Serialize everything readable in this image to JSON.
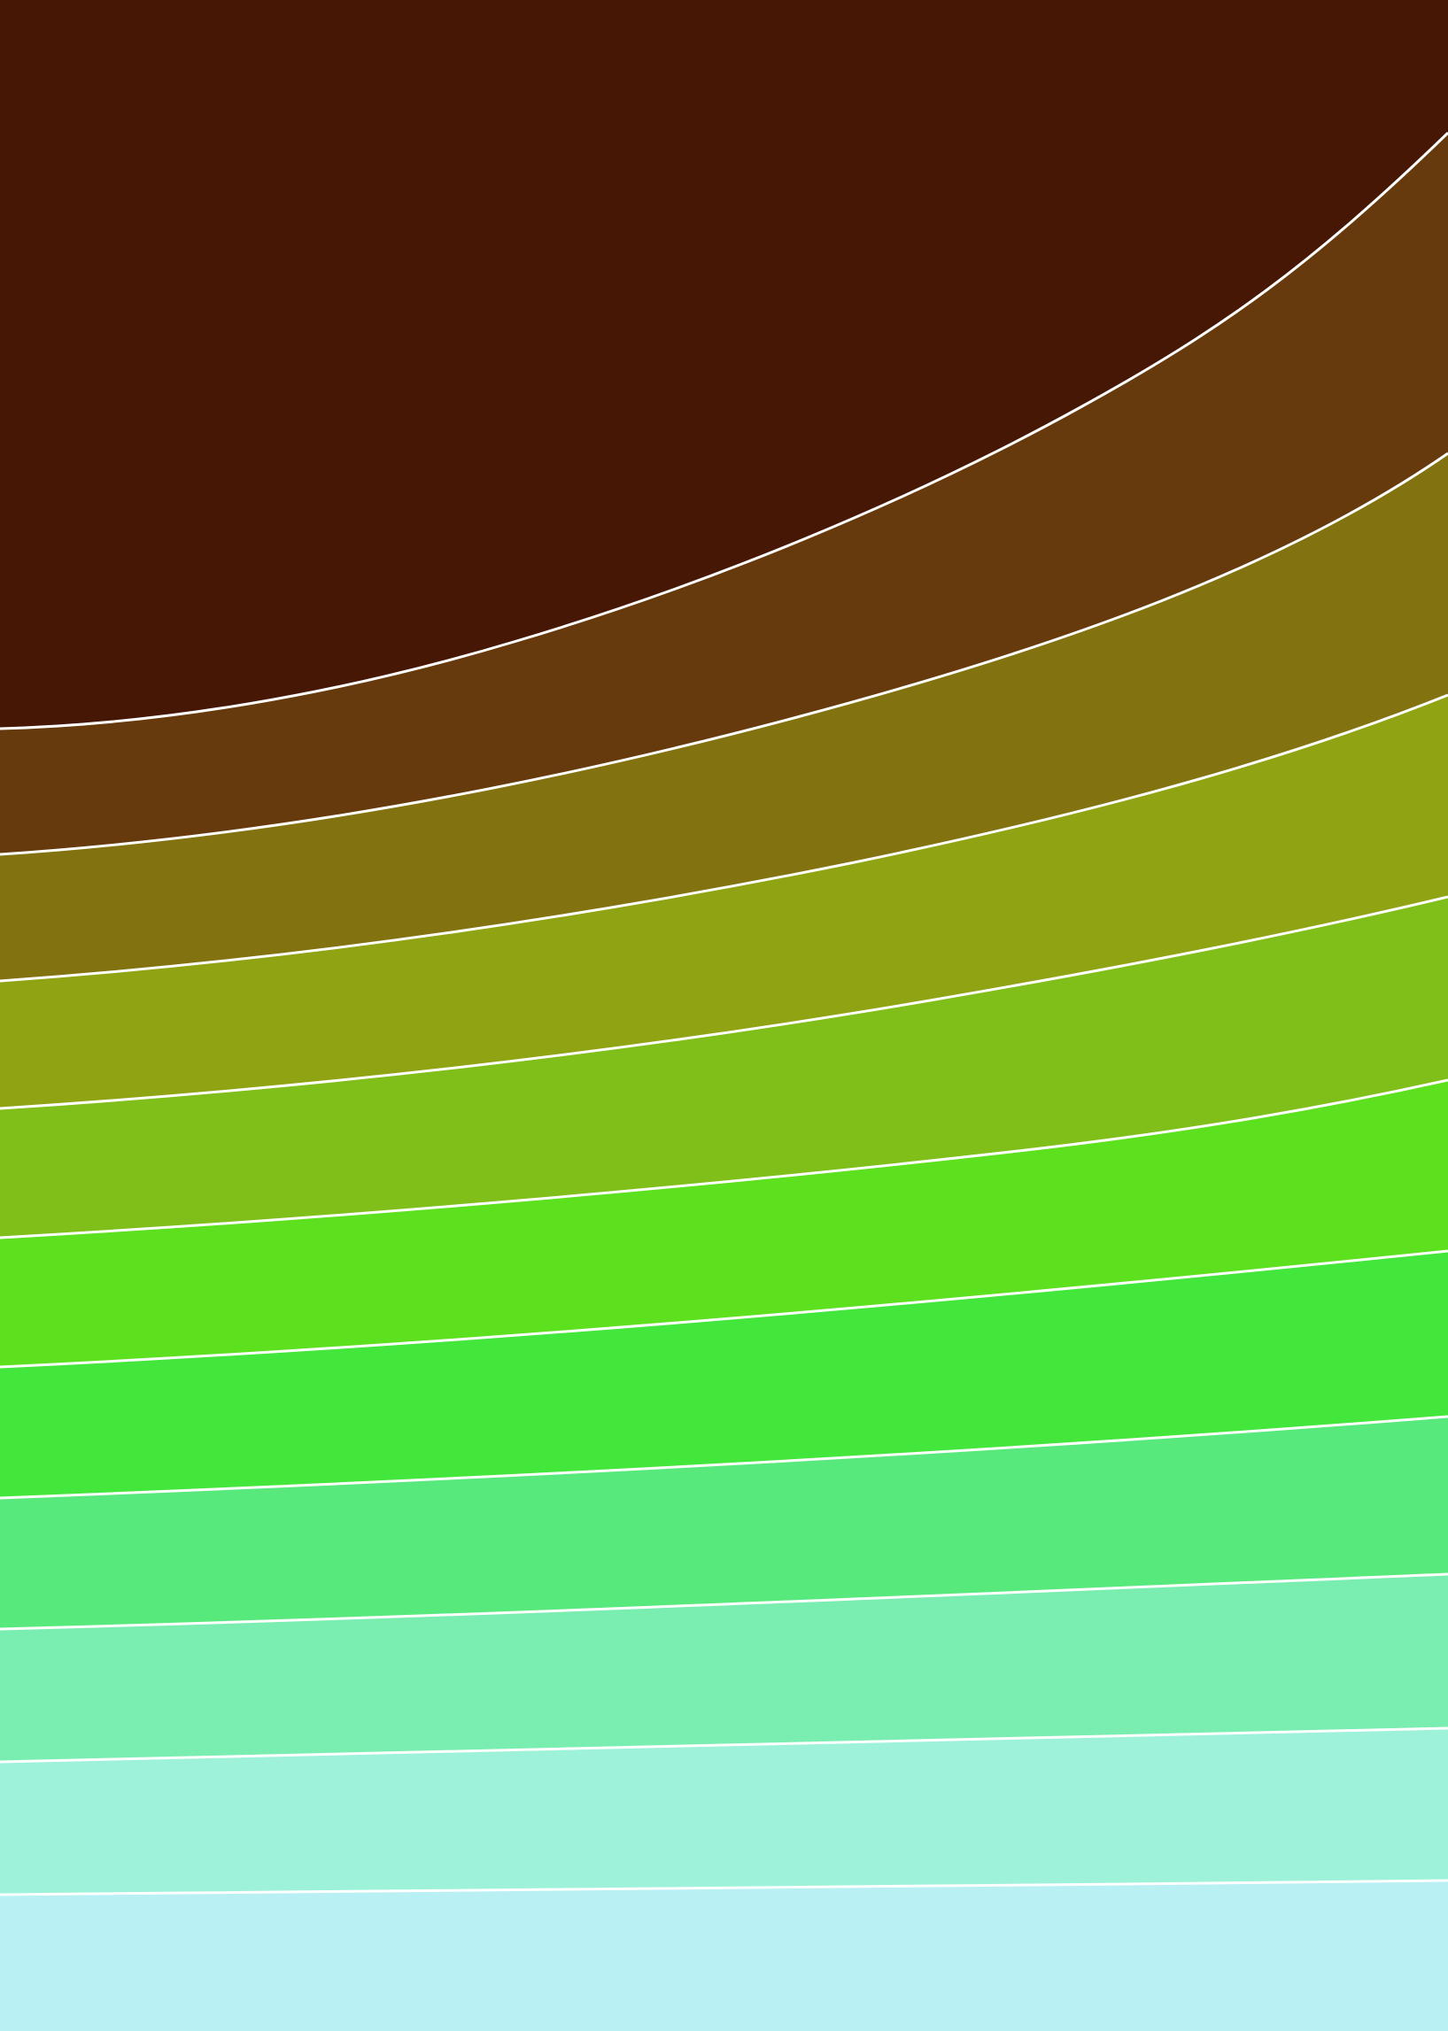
{
  "artwork": {
    "background_color": "#b8f0f4",
    "divider_color": "#ffffff",
    "bands": [
      {
        "name": "band-1",
        "color": "#461705"
      },
      {
        "name": "band-2",
        "color": "#663a0c"
      },
      {
        "name": "band-3",
        "color": "#827210"
      },
      {
        "name": "band-4",
        "color": "#90a313"
      },
      {
        "name": "band-5",
        "color": "#80bf19"
      },
      {
        "name": "band-6",
        "color": "#5de01e"
      },
      {
        "name": "band-7",
        "color": "#43e63a"
      },
      {
        "name": "band-8",
        "color": "#58e97d"
      },
      {
        "name": "band-9",
        "color": "#7aeeb0"
      },
      {
        "name": "band-10",
        "color": "#9ef2da"
      },
      {
        "name": "band-11",
        "color": "#b8f0f4"
      }
    ]
  }
}
